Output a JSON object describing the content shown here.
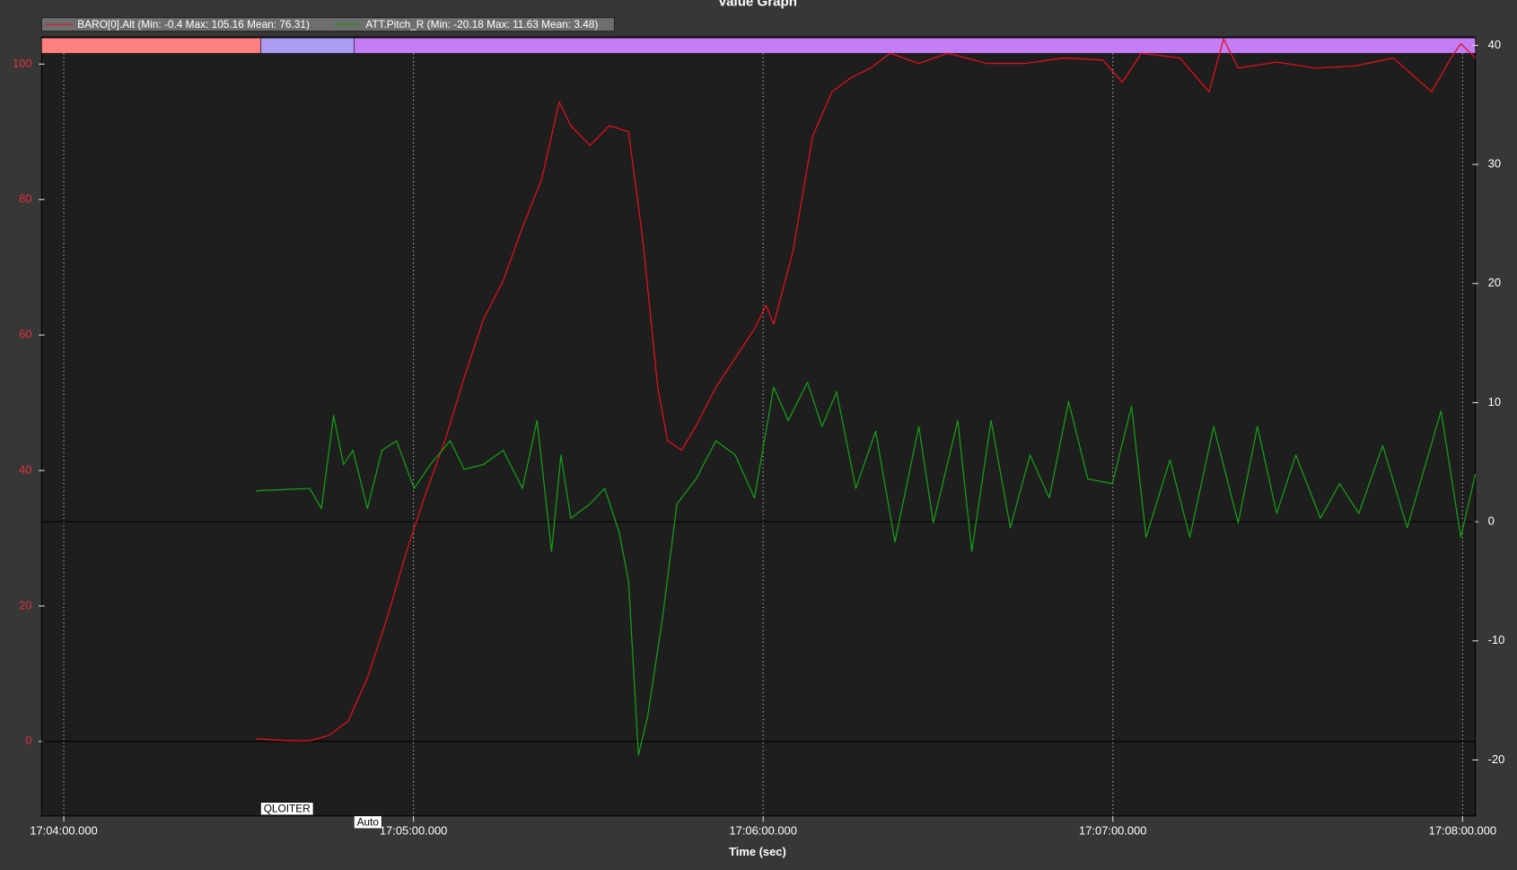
{
  "chart_data": {
    "type": "line",
    "title": "Value Graph",
    "x_label": "Time (sec)",
    "xlim": [
      -3.8,
      242.2
    ],
    "xticks": [
      {
        "value": 0,
        "label": "17:04:00.000"
      },
      {
        "value": 60,
        "label": "17:05:00.000"
      },
      {
        "value": 120,
        "label": "17:06:00.000"
      },
      {
        "value": 180,
        "label": "17:07:00.000"
      },
      {
        "value": 240,
        "label": "17:08:00.000"
      }
    ],
    "ylim": [
      -11,
      104
    ],
    "yticks": [
      0,
      20,
      40,
      60,
      80,
      100
    ],
    "ytick_color": "#e0303a",
    "y2lim": [
      -24.7,
      40.7
    ],
    "y2ticks": [
      -20,
      -10,
      0,
      10,
      20,
      30,
      40
    ],
    "grid": true,
    "mode_bar_color": "#ff8080",
    "modes": [
      {
        "label": "QLOITER",
        "x": 33.8,
        "color": "#ab9cf2"
      },
      {
        "label": "Auto",
        "x": 49.8,
        "color": "#c37ef5"
      }
    ],
    "series": [
      {
        "name": "BARO[0].Alt  (Min: -0.4 Max: 105.16 Mean: 76.31)",
        "color": "#e0101c",
        "x": [
          33,
          38.8,
          42.2,
          45.5,
          48.8,
          52.1,
          55.4,
          58.8,
          62.1,
          65.4,
          68.7,
          72,
          75.4,
          78.7,
          82,
          85,
          87,
          90.3,
          93.6,
          96.9,
          99.4,
          101.9,
          103.6,
          106,
          108.5,
          111.9,
          115.2,
          118.5,
          120.5,
          121.8,
          125.1,
          128.5,
          131.8,
          135.1,
          138.4,
          141.8,
          146.7,
          151.7,
          158.3,
          165,
          171.6,
          178.3,
          181.6,
          184.9,
          191.5,
          196.5,
          199,
          201.5,
          208.1,
          214.8,
          221.4,
          228.1,
          234.7,
          238,
          239.7,
          242.2
        ],
        "values": [
          0.4,
          0.1,
          0.1,
          0.9,
          3,
          9.4,
          18,
          28,
          36.6,
          44.4,
          53.7,
          62.3,
          68,
          75.9,
          83,
          94.4,
          90.9,
          88,
          90.9,
          90,
          73.7,
          52.3,
          44.4,
          43,
          46.6,
          52.3,
          56.6,
          60.9,
          64.4,
          61.6,
          72.3,
          89.4,
          95.9,
          98,
          99.4,
          101.6,
          100.1,
          101.6,
          100.1,
          100.1,
          100.9,
          100.6,
          97.3,
          101.6,
          100.9,
          95.9,
          103.7,
          99.4,
          100.3,
          99.4,
          99.7,
          100.9,
          95.9,
          100.9,
          103,
          100.9
        ]
      },
      {
        "name": "ATT.Pitch_R (Min: -20.18 Max: 11.63 Mean: 3.48)",
        "color": "#169b16",
        "axis": "y2",
        "x": [
          33,
          42.2,
          44.2,
          46.3,
          48,
          49.6,
          52.1,
          54.6,
          57.1,
          60.1,
          62.9,
          66.3,
          68.7,
          72,
          75.4,
          78.7,
          81.2,
          83.7,
          85.3,
          87,
          90.3,
          92.8,
          95.3,
          96.9,
          98.6,
          100.2,
          102.7,
          105.2,
          108.5,
          111.9,
          115.2,
          118.5,
          121.8,
          124.3,
          127.6,
          130.1,
          132.6,
          135.9,
          139.3,
          142.6,
          146.7,
          149.2,
          153.4,
          155.8,
          159.1,
          162.4,
          165.8,
          169.1,
          172.4,
          175.7,
          179.9,
          183.2,
          185.7,
          189.8,
          193.2,
          197.3,
          201.5,
          204.8,
          208.1,
          211.4,
          215.6,
          218.9,
          222.2,
          226.3,
          230.5,
          236.3,
          239.7,
          242.2
        ],
        "values": [
          2.6,
          2.8,
          1.1,
          8.9,
          4.8,
          6,
          1.1,
          6,
          6.8,
          2.8,
          4.8,
          6.8,
          4.4,
          4.8,
          6,
          2.8,
          8.5,
          -2.5,
          5.6,
          0.3,
          1.5,
          2.8,
          -0.9,
          -5,
          -19.6,
          -16.3,
          -8.2,
          1.5,
          3.6,
          6.8,
          5.6,
          2,
          11.3,
          8.5,
          11.7,
          8,
          10.9,
          2.8,
          7.6,
          -1.7,
          8,
          -0.1,
          8.5,
          -2.5,
          8.5,
          -0.5,
          5.6,
          2,
          10.1,
          3.6,
          3.2,
          9.7,
          -1.3,
          5.2,
          -1.3,
          8,
          -0.1,
          8,
          0.7,
          5.6,
          0.3,
          3.2,
          0.7,
          6.4,
          -0.5,
          9.3,
          -1.3,
          4
        ]
      }
    ]
  }
}
